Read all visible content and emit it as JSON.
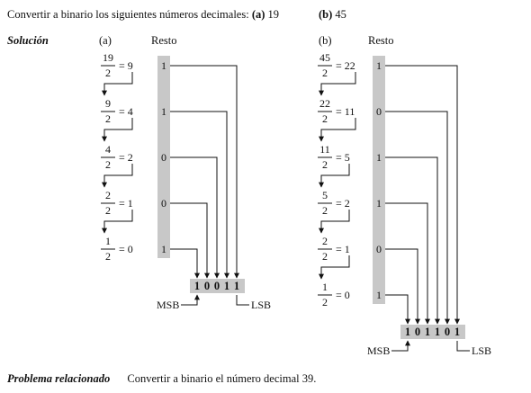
{
  "problem": {
    "text": "Convertir a binario los siguientes números decimales:",
    "a_label": "(a)",
    "a_value": "19",
    "b_label": "(b)",
    "b_value": "45"
  },
  "solution_label": "Solución",
  "part_a": {
    "label": "(a)",
    "resto": "Resto",
    "steps": [
      {
        "num": "19",
        "den": "2",
        "q": "= 9",
        "r": "1"
      },
      {
        "num": "9",
        "den": "2",
        "q": "= 4",
        "r": "1"
      },
      {
        "num": "4",
        "den": "2",
        "q": "= 2",
        "r": "0"
      },
      {
        "num": "2",
        "den": "2",
        "q": "= 1",
        "r": "0"
      },
      {
        "num": "1",
        "den": "2",
        "q": "= 0",
        "r": "1"
      }
    ],
    "result": [
      "1",
      "0",
      "0",
      "1",
      "1"
    ],
    "msb": "MSB",
    "lsb": "LSB"
  },
  "part_b": {
    "label": "(b)",
    "resto": "Resto",
    "steps": [
      {
        "num": "45",
        "den": "2",
        "q": "= 22",
        "r": "1"
      },
      {
        "num": "22",
        "den": "2",
        "q": "= 11",
        "r": "0"
      },
      {
        "num": "11",
        "den": "2",
        "q": "= 5",
        "r": "1"
      },
      {
        "num": "5",
        "den": "2",
        "q": "= 2",
        "r": "1"
      },
      {
        "num": "2",
        "den": "2",
        "q": "= 1",
        "r": "0"
      },
      {
        "num": "1",
        "den": "2",
        "q": "= 0",
        "r": "1"
      }
    ],
    "result": [
      "1",
      "0",
      "1",
      "1",
      "0",
      "1"
    ],
    "msb": "MSB",
    "lsb": "LSB"
  },
  "related": {
    "label": "Problema relacionado",
    "text": "Convertir a binario el número decimal 39."
  },
  "colors": {
    "remainder_bar": "#c8c8c8",
    "result_box": "#c8c8c8",
    "line": "#111111"
  }
}
